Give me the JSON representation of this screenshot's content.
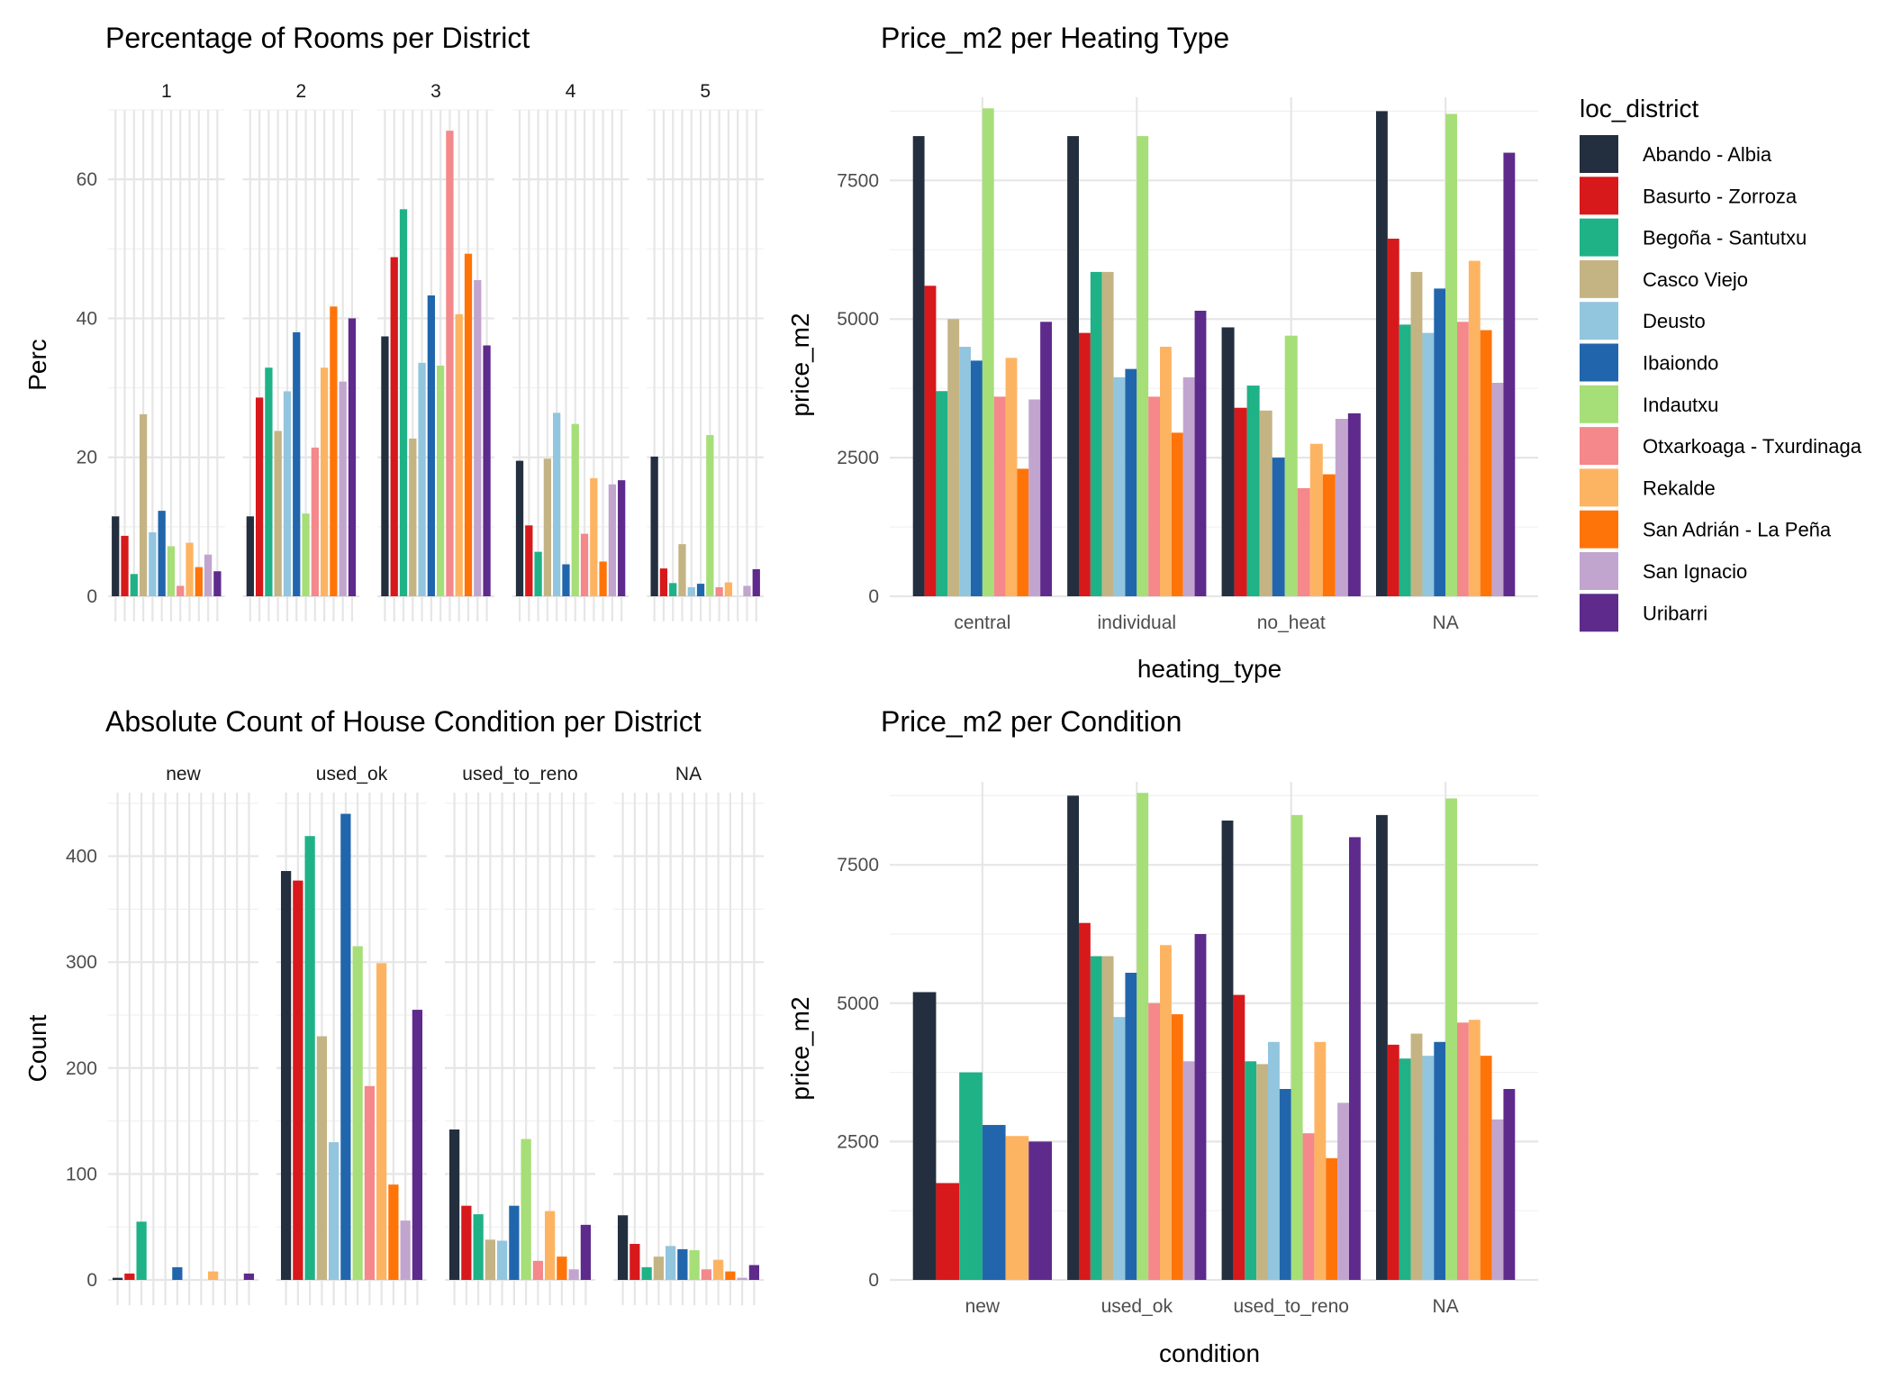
{
  "districts": [
    {
      "name": "Abando - Albia",
      "color": "#232F3E"
    },
    {
      "name": "Basurto - Zorroza",
      "color": "#D7191C"
    },
    {
      "name": "Begoña - Santutxu",
      "color": "#1FB287"
    },
    {
      "name": "Casco Viejo",
      "color": "#C4B484"
    },
    {
      "name": "Deusto",
      "color": "#92C5DE"
    },
    {
      "name": "Ibaiondo",
      "color": "#2166AC"
    },
    {
      "name": "Indautxu",
      "color": "#A6DE78"
    },
    {
      "name": "Otxarkoaga - Txurdinaga",
      "color": "#F4888A"
    },
    {
      "name": "Rekalde",
      "color": "#FDB462"
    },
    {
      "name": "San Adrián - La Peña",
      "color": "#FF7409"
    },
    {
      "name": "San Ignacio",
      "color": "#C2A5CF"
    },
    {
      "name": "Uribarri",
      "color": "#5E2A8C"
    }
  ],
  "legend": {
    "title": "loc_district"
  },
  "chart_data": [
    {
      "id": "rooms",
      "type": "bar",
      "title": "Percentage of Rooms per District",
      "xlabel": "",
      "ylabel": "Perc",
      "facets": [
        "1",
        "2",
        "3",
        "4",
        "5"
      ],
      "ylim": [
        0,
        70
      ],
      "yticks": [
        0,
        20,
        40,
        60
      ],
      "values": [
        [
          11.5,
          8.7,
          3.2,
          26.2,
          9.2,
          12.3,
          7.2,
          1.5,
          7.7,
          4.2,
          6.0,
          3.6
        ],
        [
          11.5,
          28.6,
          32.9,
          23.8,
          29.5,
          38.0,
          11.9,
          21.4,
          32.9,
          41.7,
          30.9,
          40.0
        ],
        [
          37.4,
          48.8,
          55.7,
          22.7,
          33.6,
          43.3,
          33.2,
          67.0,
          40.6,
          49.3,
          45.5,
          36.1
        ],
        [
          19.5,
          10.2,
          6.4,
          19.8,
          26.4,
          4.6,
          24.8,
          9.0,
          17.0,
          5.0,
          16.1,
          16.7
        ],
        [
          20.1,
          4.0,
          1.9,
          7.5,
          1.3,
          1.8,
          23.2,
          1.3,
          2.0,
          0.0,
          1.5,
          3.9
        ]
      ]
    },
    {
      "id": "heating",
      "type": "bar",
      "title": "Price_m2 per Heating Type",
      "xlabel": "heating_type",
      "ylabel": "price_m2",
      "categories": [
        "central",
        "individual",
        "no_heat",
        "NA"
      ],
      "ylim": [
        0,
        9000
      ],
      "yticks": [
        0,
        2500,
        5000,
        7500
      ],
      "values": [
        [
          8300,
          5600,
          3700,
          5000,
          4500,
          4250,
          8800,
          3600,
          4300,
          2300,
          3550,
          4950
        ],
        [
          8300,
          4750,
          5850,
          5850,
          3950,
          4100,
          8300,
          3600,
          4500,
          2950,
          3950,
          5150
        ],
        [
          4850,
          3400,
          3800,
          3350,
          null,
          2500,
          4700,
          1950,
          2750,
          2200,
          3200,
          3300
        ],
        [
          8750,
          6450,
          4900,
          5850,
          4750,
          5550,
          8700,
          4950,
          6050,
          4800,
          3850,
          8000
        ]
      ]
    },
    {
      "id": "condition_count",
      "type": "bar",
      "title": "Absolute Count of House Condition per District",
      "xlabel": "",
      "ylabel": "Count",
      "facets": [
        "new",
        "used_ok",
        "used_to_reno",
        "NA"
      ],
      "ylim": [
        0,
        460
      ],
      "yticks": [
        0,
        100,
        200,
        300,
        400
      ],
      "values": [
        [
          2,
          6,
          55,
          0,
          0,
          12,
          0,
          0,
          8,
          0,
          0,
          6
        ],
        [
          386,
          377,
          419,
          230,
          130,
          440,
          315,
          183,
          299,
          90,
          56,
          255
        ],
        [
          142,
          70,
          62,
          38,
          37,
          70,
          133,
          18,
          65,
          22,
          10,
          52
        ],
        [
          61,
          34,
          12,
          22,
          32,
          29,
          28,
          10,
          19,
          8,
          2,
          14
        ]
      ]
    },
    {
      "id": "condition_price",
      "type": "bar",
      "title": "Price_m2 per Condition",
      "xlabel": "condition",
      "ylabel": "price_m2",
      "categories": [
        "new",
        "used_ok",
        "used_to_reno",
        "NA"
      ],
      "ylim": [
        0,
        9000
      ],
      "yticks": [
        0,
        2500,
        5000,
        7500
      ],
      "values": [
        [
          5200,
          1750,
          3750,
          null,
          null,
          2800,
          null,
          null,
          2600,
          null,
          null,
          2500
        ],
        [
          8750,
          6450,
          5850,
          5850,
          4750,
          5550,
          8800,
          5000,
          6050,
          4800,
          3950,
          6250
        ],
        [
          8300,
          5150,
          3950,
          3900,
          4300,
          3450,
          8400,
          2650,
          4300,
          2200,
          3200,
          8000
        ],
        [
          8400,
          4250,
          4000,
          4450,
          4050,
          4300,
          8700,
          4650,
          4700,
          4050,
          2900,
          3450
        ]
      ]
    }
  ]
}
